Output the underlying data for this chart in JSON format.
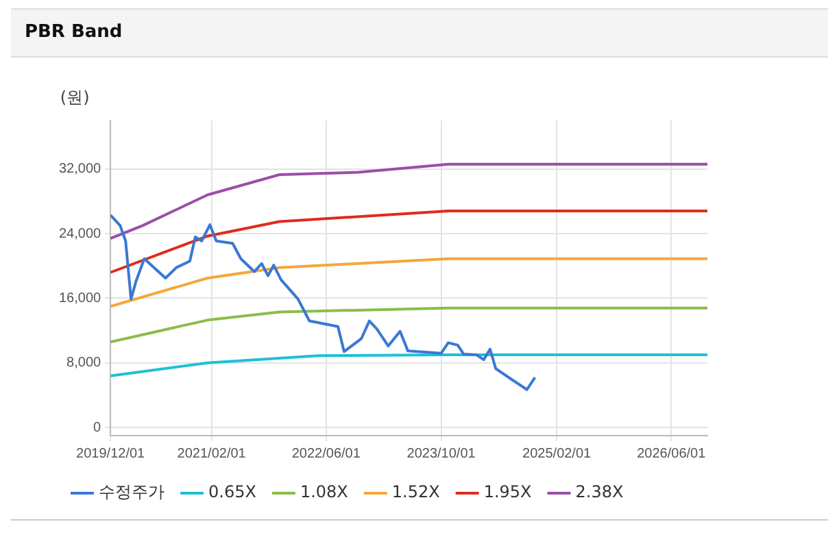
{
  "chart_data": {
    "type": "line",
    "title": "PBR Band",
    "ylabel": "(원)",
    "xlim": [
      "2019-12-01",
      "2026-11-01"
    ],
    "xticks": [
      {
        "value": "2019-12-01",
        "label": "2019/12/01"
      },
      {
        "value": "2021-02-01",
        "label": "2021/02/01"
      },
      {
        "value": "2022-06-01",
        "label": "2022/06/01"
      },
      {
        "value": "2023-10-01",
        "label": "2023/10/01"
      },
      {
        "value": "2025-02-01",
        "label": "2025/02/01"
      },
      {
        "value": "2026-06-01",
        "label": "2026/06/01"
      }
    ],
    "ylim": [
      -1000,
      38000
    ],
    "yticks": [
      {
        "value": 0,
        "label": "0"
      },
      {
        "value": 8000,
        "label": "8,000"
      },
      {
        "value": 16000,
        "label": "16,000"
      },
      {
        "value": 24000,
        "label": "24,000"
      },
      {
        "value": 32000,
        "label": "32,000"
      }
    ],
    "grid": true,
    "legend": "bottom",
    "marker": "none",
    "line_style": "solid",
    "series": [
      {
        "name": "수정주가",
        "color": "#3a78d4",
        "x": [
          "2019-12-01",
          "2020-01-11",
          "2020-02-03",
          "2020-02-26",
          "2020-03-18",
          "2020-04-22",
          "2020-07-21",
          "2020-09-05",
          "2020-11-01",
          "2020-11-24",
          "2020-12-21",
          "2021-01-25",
          "2021-02-21",
          "2021-05-01",
          "2021-06-05",
          "2021-08-01",
          "2021-09-01",
          "2021-09-28",
          "2021-10-22",
          "2021-11-22",
          "2022-02-02",
          "2022-03-22",
          "2022-07-21",
          "2022-08-16",
          "2022-10-28",
          "2022-12-01",
          "2023-01-02",
          "2023-02-19",
          "2023-04-10",
          "2023-05-13",
          "2023-10-01",
          "2023-10-31",
          "2023-12-10",
          "2024-01-04",
          "2024-02-28",
          "2024-03-29",
          "2024-04-25",
          "2024-05-19",
          "2024-07-18",
          "2024-09-28",
          "2024-11-01"
        ],
        "values": [
          26300,
          25000,
          23100,
          15900,
          18100,
          20900,
          18500,
          19800,
          20600,
          23600,
          23100,
          25100,
          23100,
          22800,
          20900,
          19300,
          20300,
          18800,
          20100,
          18300,
          15900,
          13200,
          12500,
          9400,
          11000,
          13200,
          12200,
          10100,
          11900,
          9500,
          9200,
          10500,
          10200,
          9100,
          9000,
          8400,
          9700,
          7300,
          6100,
          4700,
          6200
        ]
      },
      {
        "name": "0.65X",
        "color": "#1ec0d6",
        "x": [
          "2019-12-01",
          "2021-01-15",
          "2022-05-01",
          "2023-11-01",
          "2026-11-01"
        ],
        "values": [
          6400,
          8000,
          8900,
          9000,
          9000
        ]
      },
      {
        "name": "1.08X",
        "color": "#8bbd4a",
        "x": [
          "2019-12-01",
          "2021-01-15",
          "2021-11-15",
          "2023-11-01",
          "2026-11-01"
        ],
        "values": [
          10600,
          13300,
          14300,
          14800,
          14800
        ]
      },
      {
        "name": "1.52X",
        "color": "#f4a73a",
        "x": [
          "2019-12-01",
          "2021-01-15",
          "2021-11-15",
          "2023-11-01",
          "2026-11-01"
        ],
        "values": [
          15000,
          18500,
          19800,
          20900,
          20900
        ]
      },
      {
        "name": "1.95X",
        "color": "#e02a1e",
        "x": [
          "2019-12-01",
          "2021-01-15",
          "2021-11-15",
          "2023-11-01",
          "2026-11-01"
        ],
        "values": [
          19200,
          23700,
          25500,
          26800,
          26800
        ]
      },
      {
        "name": "2.38X",
        "color": "#9a4ea6",
        "x": [
          "2019-12-01",
          "2020-04-15",
          "2021-01-15",
          "2021-11-15",
          "2022-10-15",
          "2023-11-01",
          "2026-11-01"
        ],
        "values": [
          23400,
          25000,
          28800,
          31300,
          31600,
          32600,
          32600
        ]
      }
    ]
  }
}
